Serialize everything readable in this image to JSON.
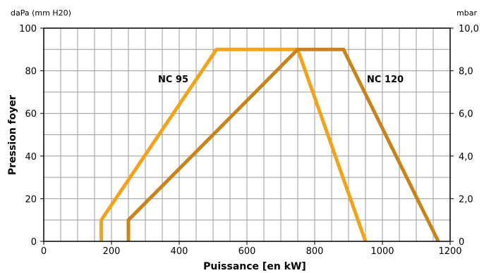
{
  "chart_data": {
    "type": "line",
    "xlabel": "Puissance [en kW]",
    "ylabel": "Pression foyer",
    "y_left_unit": "daPa (mm H20)",
    "y_right_unit": "mbar",
    "xlim": [
      0,
      1200
    ],
    "ylim": [
      0,
      100
    ],
    "y2lim": [
      0,
      10
    ],
    "grid": true,
    "x_ticks": [
      0,
      200,
      400,
      600,
      800,
      1000,
      1200
    ],
    "x_tick_labels": [
      "0",
      "200",
      "400",
      "600",
      "800",
      "1000",
      "1200"
    ],
    "y_ticks": [
      0,
      20,
      40,
      60,
      80,
      100
    ],
    "y_tick_labels": [
      "0",
      "20",
      "40",
      "60",
      "80",
      "100"
    ],
    "y2_tick_labels": [
      "0",
      "2,0",
      "4,0",
      "6,0",
      "8,0",
      "10,0"
    ],
    "series": [
      {
        "name": "NC 95",
        "color": "#F2A21B",
        "x": [
          170,
          170,
          510,
          750,
          950
        ],
        "y": [
          0,
          10,
          90,
          90,
          0
        ]
      },
      {
        "name": "NC 120",
        "color": "#C8841A",
        "x": [
          250,
          250,
          750,
          885,
          1165
        ],
        "y": [
          0,
          10,
          90,
          90,
          0
        ]
      }
    ]
  }
}
